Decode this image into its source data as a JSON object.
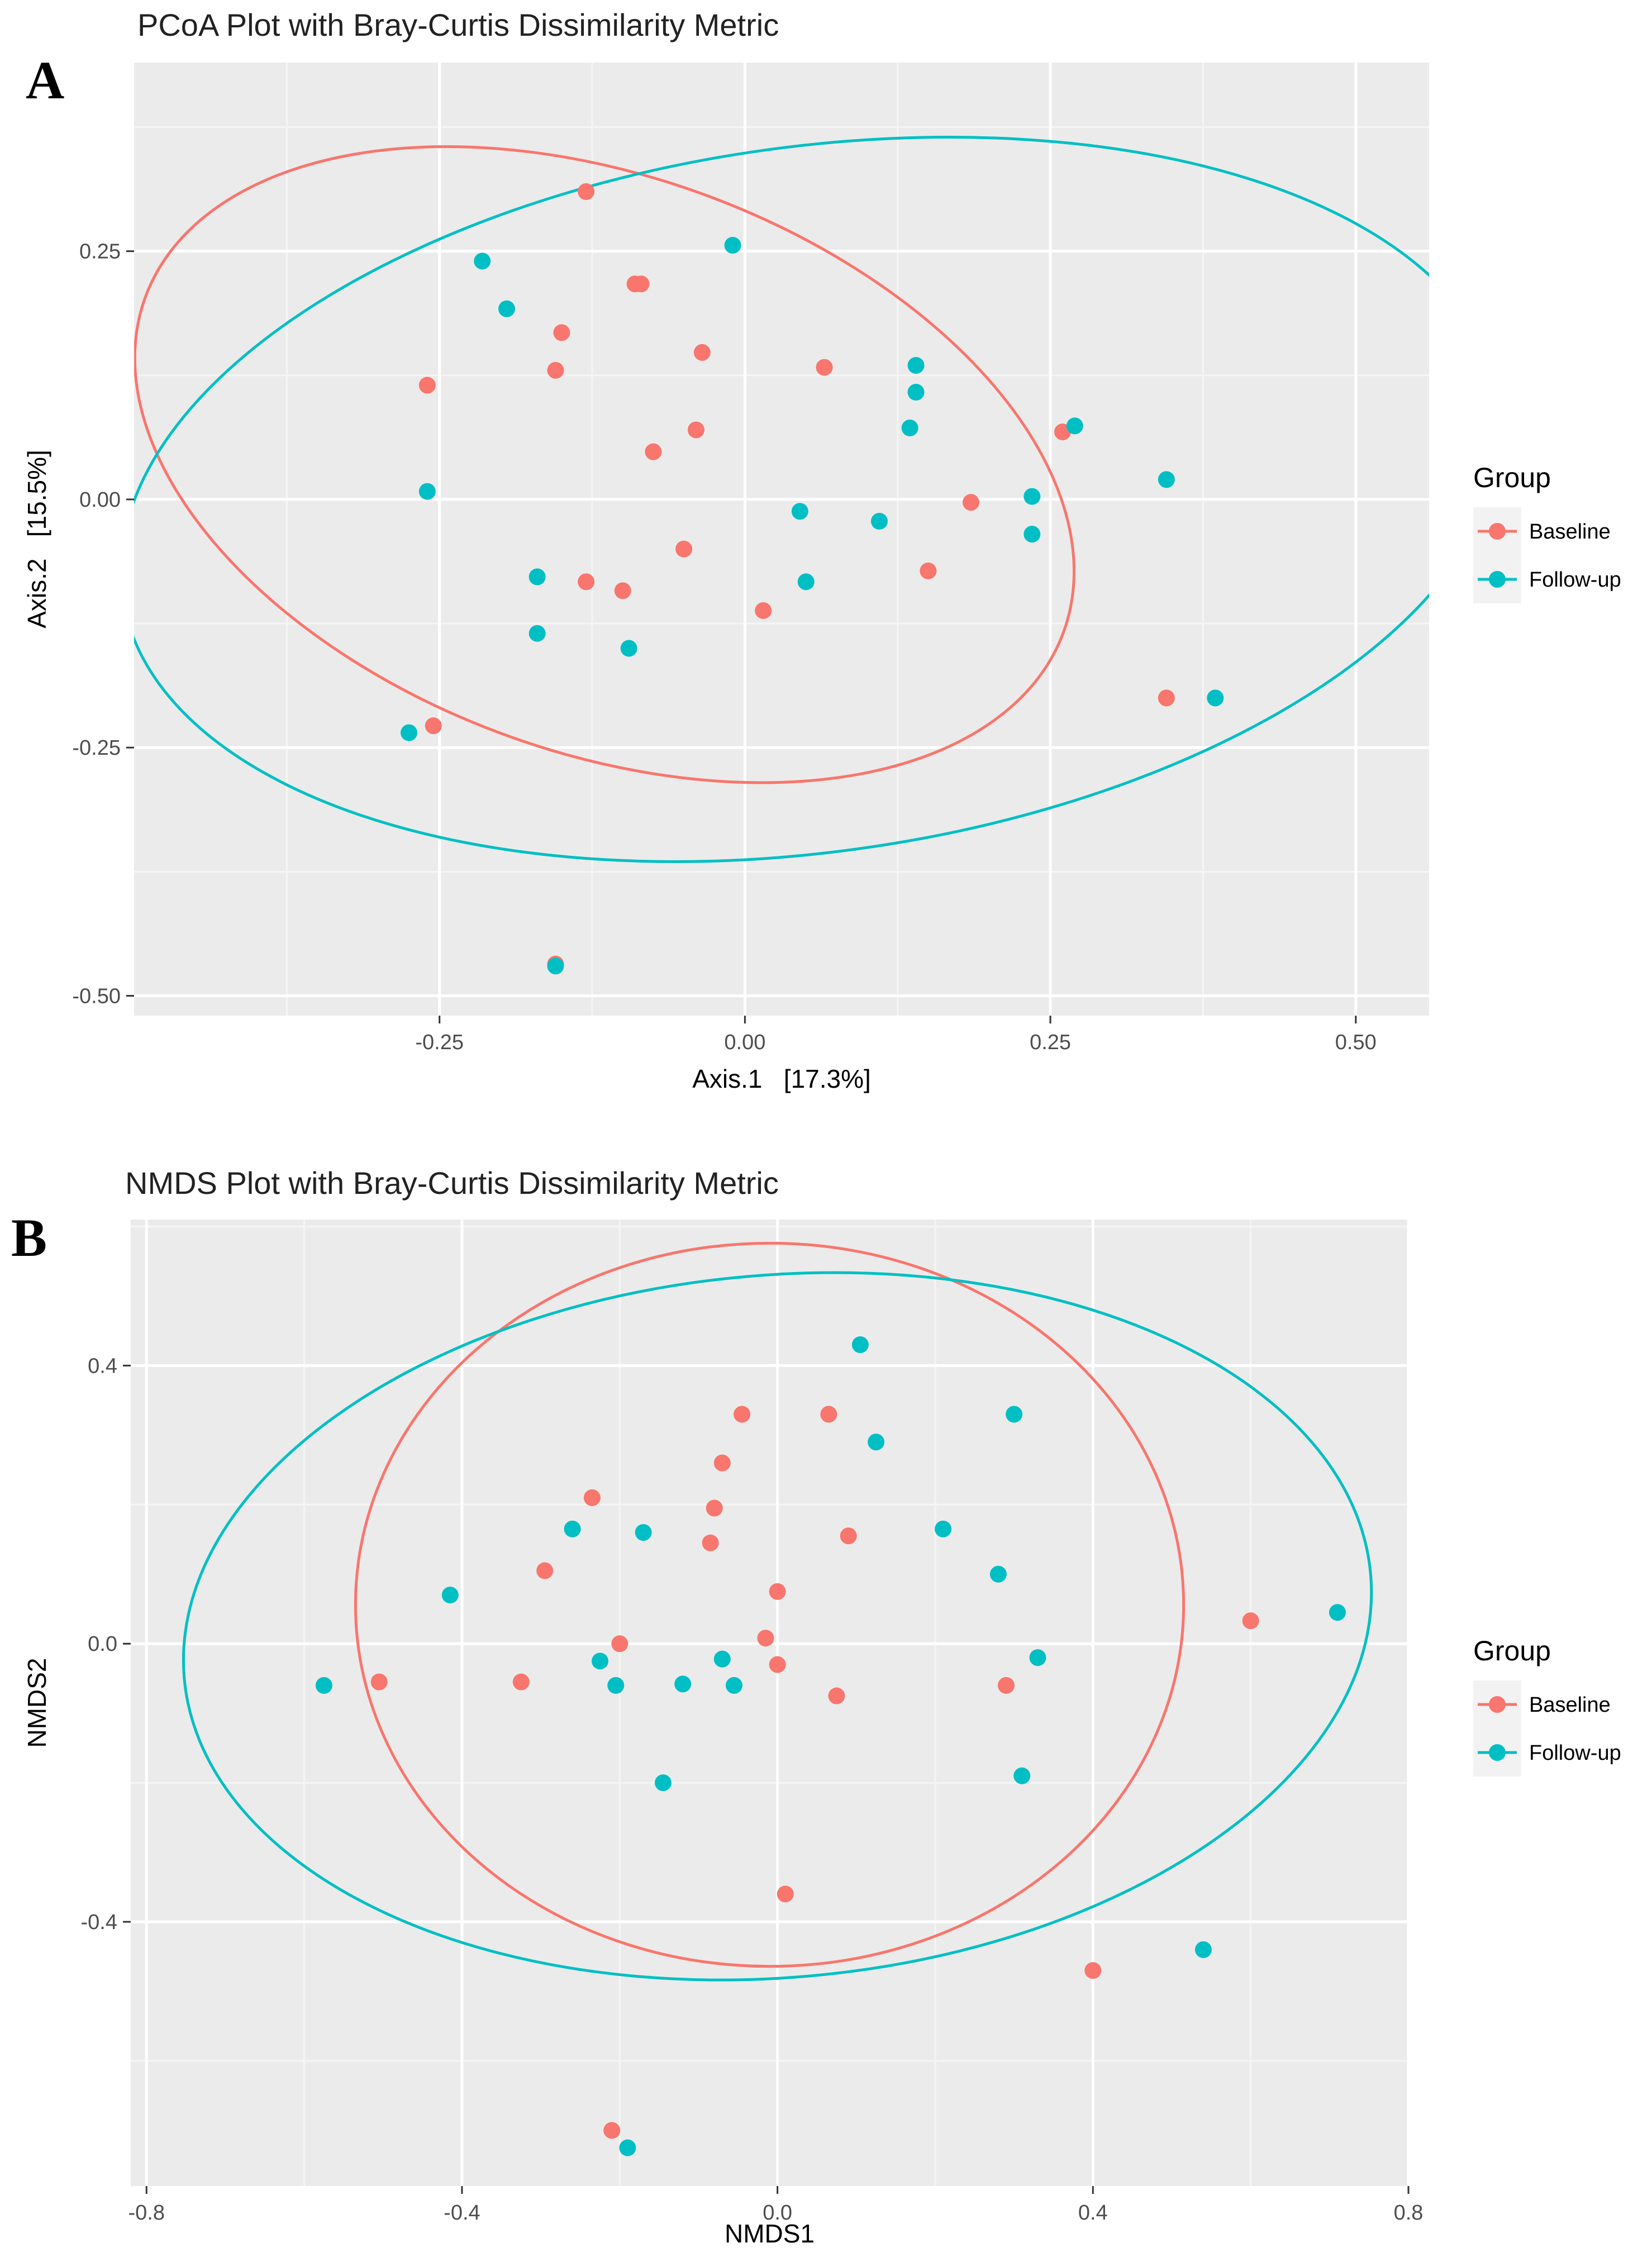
{
  "panels": [
    {
      "letter": "A",
      "chart_data": {
        "type": "scatter",
        "title": "PCoA Plot with Bray-Curtis Dissimilarity Metric",
        "xlabel": "Axis.1   [17.3%]",
        "ylabel": "Axis.2   [15.5%]",
        "xlim": [
          -0.5,
          0.56
        ],
        "ylim": [
          -0.52,
          0.44
        ],
        "x_ticks": [
          -0.25,
          0.0,
          0.25,
          0.5
        ],
        "x_tick_labels": [
          "-0.25",
          "0.00",
          "0.25",
          "0.50"
        ],
        "y_ticks": [
          -0.5,
          -0.25,
          0.0,
          0.25
        ],
        "y_tick_labels": [
          "-0.50",
          "-0.25",
          "0.00",
          "0.25"
        ],
        "legend": {
          "title": "Group",
          "position": "right",
          "entries": [
            "Baseline",
            "Follow-up"
          ]
        },
        "series": [
          {
            "name": "Baseline",
            "color": "#F8766D",
            "points": [
              [
                -0.13,
                0.31
              ],
              [
                -0.09,
                0.217
              ],
              [
                -0.085,
                0.217
              ],
              [
                -0.15,
                0.168
              ],
              [
                -0.155,
                0.13
              ],
              [
                -0.26,
                0.115
              ],
              [
                -0.035,
                0.148
              ],
              [
                0.065,
                0.133
              ],
              [
                -0.04,
                0.07
              ],
              [
                -0.075,
                0.048
              ],
              [
                0.26,
                0.068
              ],
              [
                0.185,
                -0.003
              ],
              [
                -0.05,
                -0.05
              ],
              [
                -0.13,
                -0.083
              ],
              [
                -0.1,
                -0.092
              ],
              [
                0.15,
                -0.072
              ],
              [
                0.015,
                -0.112
              ],
              [
                -0.255,
                -0.228
              ],
              [
                0.345,
                -0.2
              ],
              [
                -0.155,
                -0.468
              ]
            ]
          },
          {
            "name": "Follow-up",
            "color": "#00BFC4",
            "points": [
              [
                -0.01,
                0.256
              ],
              [
                -0.215,
                0.24
              ],
              [
                -0.195,
                0.192
              ],
              [
                0.14,
                0.135
              ],
              [
                0.14,
                0.108
              ],
              [
                0.135,
                0.072
              ],
              [
                0.27,
                0.074
              ],
              [
                0.345,
                0.02
              ],
              [
                -0.26,
                0.008
              ],
              [
                0.235,
                0.003
              ],
              [
                0.045,
                -0.012
              ],
              [
                0.11,
                -0.022
              ],
              [
                0.235,
                -0.035
              ],
              [
                -0.17,
                -0.078
              ],
              [
                0.05,
                -0.083
              ],
              [
                -0.17,
                -0.135
              ],
              [
                -0.095,
                -0.15
              ],
              [
                0.385,
                -0.2
              ],
              [
                -0.275,
                -0.235
              ],
              [
                -0.155,
                -0.47
              ]
            ]
          }
        ],
        "ellipses": [
          {
            "group": "Baseline",
            "color": "#F8766D",
            "cx": -0.115,
            "cy": 0.035,
            "rx": 0.4,
            "ry": 0.29,
            "rotate_deg": 20
          },
          {
            "group": "Follow-up",
            "color": "#00BFC4",
            "cx": 0.055,
            "cy": 0.0,
            "rx": 0.57,
            "ry": 0.355,
            "rotate_deg": -8
          }
        ]
      }
    },
    {
      "letter": "B",
      "chart_data": {
        "type": "scatter",
        "title": "NMDS Plot with Bray-Curtis Dissimilarity Metric",
        "xlabel": "NMDS1",
        "ylabel": "NMDS2",
        "xlim": [
          -0.82,
          0.8
        ],
        "ylim": [
          -0.78,
          0.61
        ],
        "x_ticks": [
          -0.8,
          -0.4,
          0.0,
          0.4,
          0.8
        ],
        "x_tick_labels": [
          "-0.8",
          "-0.4",
          "0.0",
          "0.4",
          "0.8"
        ],
        "y_ticks": [
          -0.4,
          0.0,
          0.4
        ],
        "y_tick_labels": [
          "-0.4",
          "0.0",
          "0.4"
        ],
        "legend": {
          "title": "Group",
          "position": "right",
          "entries": [
            "Baseline",
            "Follow-up"
          ]
        },
        "series": [
          {
            "name": "Baseline",
            "color": "#F8766D",
            "points": [
              [
                -0.045,
                0.33
              ],
              [
                0.065,
                0.33
              ],
              [
                -0.07,
                0.26
              ],
              [
                -0.235,
                0.21
              ],
              [
                -0.08,
                0.195
              ],
              [
                -0.085,
                0.145
              ],
              [
                0.09,
                0.155
              ],
              [
                -0.295,
                0.105
              ],
              [
                0.0,
                0.075
              ],
              [
                -0.2,
                0.0
              ],
              [
                -0.015,
                0.008
              ],
              [
                0.6,
                0.033
              ],
              [
                -0.505,
                -0.055
              ],
              [
                -0.325,
                -0.055
              ],
              [
                0.0,
                -0.03
              ],
              [
                0.075,
                -0.075
              ],
              [
                0.29,
                -0.06
              ],
              [
                0.01,
                -0.36
              ],
              [
                0.4,
                -0.47
              ],
              [
                -0.21,
                -0.7
              ]
            ]
          },
          {
            "name": "Follow-up",
            "color": "#00BFC4",
            "points": [
              [
                0.105,
                0.43
              ],
              [
                0.3,
                0.33
              ],
              [
                0.125,
                0.29
              ],
              [
                -0.26,
                0.165
              ],
              [
                -0.17,
                0.16
              ],
              [
                0.21,
                0.165
              ],
              [
                0.28,
                0.1
              ],
              [
                -0.415,
                0.07
              ],
              [
                0.71,
                0.045
              ],
              [
                -0.575,
                -0.06
              ],
              [
                -0.225,
                -0.025
              ],
              [
                -0.205,
                -0.06
              ],
              [
                -0.12,
                -0.058
              ],
              [
                -0.07,
                -0.022
              ],
              [
                -0.055,
                -0.06
              ],
              [
                0.33,
                -0.02
              ],
              [
                -0.145,
                -0.2
              ],
              [
                0.31,
                -0.19
              ],
              [
                0.54,
                -0.44
              ],
              [
                -0.19,
                -0.725
              ]
            ]
          }
        ],
        "ellipses": [
          {
            "group": "Baseline",
            "color": "#F8766D",
            "cx": -0.01,
            "cy": 0.056,
            "rx": 0.525,
            "ry": 0.52,
            "rotate_deg": 0
          },
          {
            "group": "Follow-up",
            "color": "#00BFC4",
            "cx": 0.0,
            "cy": 0.025,
            "rx": 0.755,
            "ry": 0.505,
            "rotate_deg": -5
          }
        ]
      }
    }
  ]
}
